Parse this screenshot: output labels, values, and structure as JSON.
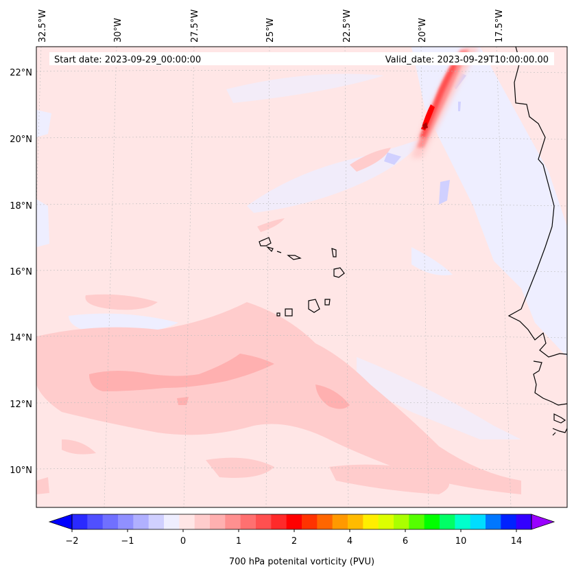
{
  "map": {
    "start_label": "Start date: 2023-09-29_00:00:00",
    "valid_label": "Valid_date: 2023-09-29T10:00:00.00",
    "lon_labels": [
      "32.5°W",
      "30°W",
      "27.5°W",
      "25°W",
      "22.5°W",
      "20°W",
      "17.5°W"
    ],
    "lat_labels": [
      "22°N",
      "20°N",
      "18°N",
      "16°N",
      "14°N",
      "12°N",
      "10°N"
    ],
    "background_color": "#ffe6e6",
    "negative_tint": "#eeeeff",
    "coastline_color": "#000000",
    "gridline_style": "dotted"
  },
  "colorbar": {
    "label": "700 hPa potenital vorticity (PVU)",
    "ticks": [
      "−2",
      "−1",
      "0",
      "1",
      "2",
      "4",
      "6",
      "10",
      "14"
    ],
    "colors": [
      "#0000ff",
      "#2a2aff",
      "#5050ff",
      "#7070ff",
      "#9090ff",
      "#b0b0ff",
      "#d0d0ff",
      "#eeeeff",
      "#ffe6e6",
      "#ffcccc",
      "#ffb0b0",
      "#ff9090",
      "#ff7070",
      "#ff5050",
      "#ff2a2a",
      "#ff0000",
      "#ff3300",
      "#ff6600",
      "#ff9900",
      "#ffbb00",
      "#ffee00",
      "#ddff00",
      "#aaff00",
      "#55ff00",
      "#00ff00",
      "#00ff66",
      "#00ffcc",
      "#00ddff",
      "#0077ff",
      "#0022ff",
      "#3300ff",
      "#9900ff"
    ]
  }
}
